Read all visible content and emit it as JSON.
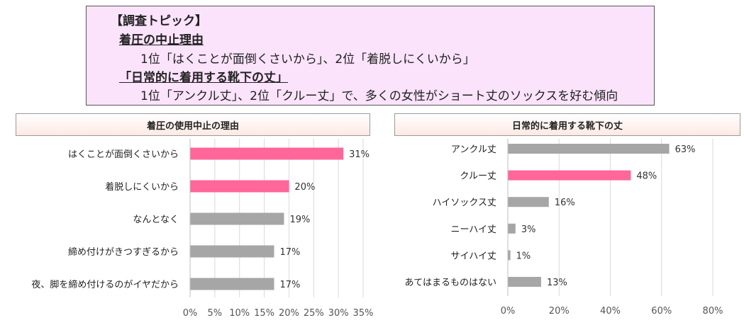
{
  "topic": {
    "heading": "【調査トピック】",
    "section1_title": "着圧の中止理由",
    "section1_line": "1位「はくことが面倒くさいから」、2位「着脱しにくいから」",
    "section2_title": "「日常的に着用する靴下の丈」",
    "section2_line": "1位「アンクル丈」、2位「クルー丈」で、多くの女性がショート丈のソックスを好む傾向"
  },
  "colors": {
    "highlight": "#ff6699",
    "normal": "#a6a6a6",
    "grid": "#d9d9d9"
  },
  "chart_data": [
    {
      "type": "bar",
      "orientation": "horizontal",
      "title": "着圧の使用中止の理由",
      "categories": [
        "はくことが面倒くさいから",
        "着脱しにくいから",
        "なんとなく",
        "締め付けがきつすぎるから",
        "夜、脚を締め付けるのがイヤだから"
      ],
      "values": [
        31,
        20,
        19,
        17,
        17
      ],
      "value_labels": [
        "31%",
        "20%",
        "19%",
        "17%",
        "17%"
      ],
      "highlight": [
        true,
        true,
        false,
        false,
        false
      ],
      "xlim": [
        0,
        35
      ],
      "ticks": [
        0,
        5,
        10,
        15,
        20,
        25,
        30,
        35
      ],
      "tick_labels": [
        "0%",
        "5%",
        "10%",
        "15%",
        "20%",
        "25%",
        "30%",
        "35%"
      ]
    },
    {
      "type": "bar",
      "orientation": "horizontal",
      "title": "日常的に着用する靴下の丈",
      "categories": [
        "アンクル丈",
        "クルー丈",
        "ハイソックス丈",
        "ニーハイ丈",
        "サイハイ丈",
        "あてはまるものはない"
      ],
      "values": [
        63,
        48,
        16,
        3,
        1,
        13
      ],
      "value_labels": [
        "63%",
        "48%",
        "16%",
        "3%",
        "1%",
        "13%"
      ],
      "highlight": [
        false,
        true,
        false,
        false,
        false,
        false
      ],
      "xlim": [
        0,
        80
      ],
      "ticks": [
        0,
        20,
        40,
        60,
        80
      ],
      "tick_labels": [
        "0%",
        "20%",
        "40%",
        "60%",
        "80%"
      ]
    }
  ]
}
